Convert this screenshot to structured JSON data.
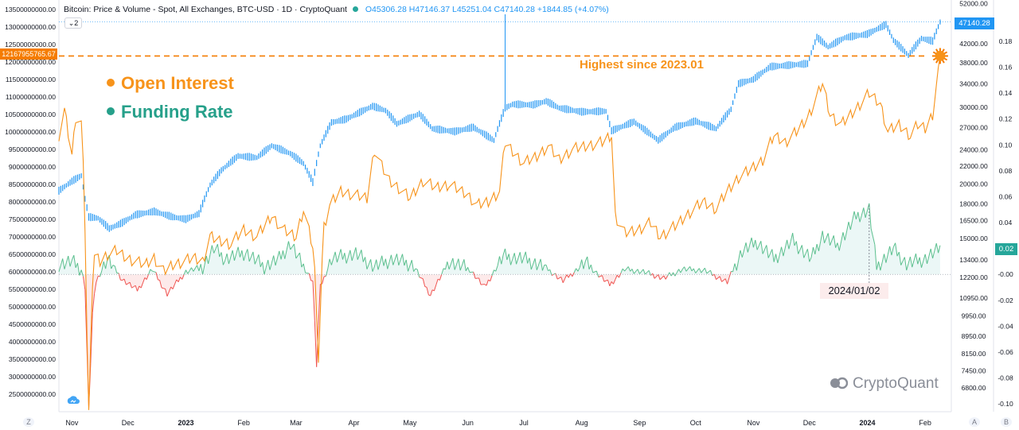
{
  "header": {
    "title": "Bitcoin: Price & Volume - Spot, All Exchanges, BTC-USD · 1D · CryptoQuant",
    "ohlc": "O45306.28 H47146.37 L45251.04 C47140.28 +1844.85 (+4.07%)",
    "collapse_label": "2"
  },
  "legend": {
    "open_interest": "Open Interest",
    "funding_rate": "Funding Rate"
  },
  "annotation": "Highest since 2023.01",
  "date_marker": "2024/01/02",
  "tags": {
    "price": "47140.28",
    "funding_rate": "0.02",
    "open_interest": "12167955765.67"
  },
  "watermark": "CryptoQuant",
  "corners": {
    "left": "Z",
    "right_a": "A",
    "right_b": "B"
  },
  "colors": {
    "price": "#2196f3",
    "open_interest": "#f7931a",
    "funding_positive": "#26a69a",
    "funding_negative": "#ef5350",
    "annotation": "#f7931a"
  },
  "chart_data": {
    "type": "line",
    "x_ticks": [
      "Nov",
      "Dec",
      "2023",
      "Feb",
      "Mar",
      "Apr",
      "May",
      "Jun",
      "Jul",
      "Aug",
      "Sep",
      "Oct",
      "Nov",
      "Dec",
      "2024",
      "Feb"
    ],
    "x_range": [
      "2022-10-25",
      "2024-02-15"
    ],
    "left_axis": {
      "ticks": [
        "13500000000.00",
        "13000000000.00",
        "12500000000.00",
        "12000000000.00",
        "11500000000.00",
        "11000000000.00",
        "10500000000.00",
        "10000000000.00",
        "9500000000.00",
        "9000000000.00",
        "8500000000.00",
        "8000000000.00",
        "7500000000.00",
        "7000000000.00",
        "6500000000.00",
        "6000000000.00",
        "5500000000.00",
        "5000000000.00",
        "4500000000.00",
        "4000000000.00",
        "3500000000.00",
        "3000000000.00",
        "2500000000.00"
      ],
      "range": [
        2000000000,
        13700000000
      ]
    },
    "price_axis": {
      "ticks": [
        "52000.00",
        "47000.00",
        "42000.00",
        "38000.00",
        "34000.00",
        "30000.00",
        "27000.00",
        "24000.00",
        "22000.00",
        "20000.00",
        "18000.00",
        "16500.00",
        "15000.00",
        "13400.00",
        "12200.00",
        "10950.00",
        "9950.00",
        "8950.00",
        "8150.00",
        "7450.00",
        "6800.00"
      ],
      "scale": "log"
    },
    "funding_axis": {
      "ticks": [
        "0.18",
        "0.16",
        "0.14",
        "0.12",
        "0.10",
        "0.08",
        "0.06",
        "0.04",
        "0.02",
        "-0.00",
        "-0.02",
        "-0.04",
        "-0.06",
        "-0.08",
        "-0.10"
      ],
      "range": [
        -0.106,
        0.21
      ]
    },
    "series": [
      {
        "name": "Open Interest",
        "unit": "USD",
        "points": [
          [
            "2022-10-25",
            9900000000
          ],
          [
            "2022-10-28",
            10600000000
          ],
          [
            "2022-11-01",
            9300000000
          ],
          [
            "2022-11-03",
            10400000000
          ],
          [
            "2022-11-06",
            10200000000
          ],
          [
            "2022-11-08",
            8500000000
          ],
          [
            "2022-11-10",
            6700000000
          ],
          [
            "2022-11-13",
            6500000000
          ],
          [
            "2022-11-16",
            6300000000
          ],
          [
            "2022-11-20",
            6500000000
          ],
          [
            "2022-11-25",
            6600000000
          ],
          [
            "2022-11-30",
            6400000000
          ],
          [
            "2022-12-05",
            6300000000
          ],
          [
            "2022-12-10",
            6200000000
          ],
          [
            "2022-12-15",
            6400000000
          ],
          [
            "2022-12-20",
            6000000000
          ],
          [
            "2022-12-25",
            6200000000
          ],
          [
            "2022-12-31",
            6300000000
          ],
          [
            "2023-01-05",
            6400000000
          ],
          [
            "2023-01-10",
            6300000000
          ],
          [
            "2023-01-14",
            7000000000
          ],
          [
            "2023-01-18",
            6900000000
          ],
          [
            "2023-01-25",
            6800000000
          ],
          [
            "2023-02-01",
            7200000000
          ],
          [
            "2023-02-08",
            7000000000
          ],
          [
            "2023-02-16",
            7600000000
          ],
          [
            "2023-02-22",
            7200000000
          ],
          [
            "2023-03-01",
            7000000000
          ],
          [
            "2023-03-05",
            7800000000
          ],
          [
            "2023-03-10",
            6700000000
          ],
          [
            "2023-03-14",
            6900000000
          ],
          [
            "2023-03-19",
            7900000000
          ],
          [
            "2023-03-25",
            8300000000
          ],
          [
            "2023-04-01",
            8200000000
          ],
          [
            "2023-04-08",
            8100000000
          ],
          [
            "2023-04-12",
            9500000000
          ],
          [
            "2023-04-16",
            9000000000
          ],
          [
            "2023-04-20",
            8600000000
          ],
          [
            "2023-04-25",
            8400000000
          ],
          [
            "2023-05-01",
            8100000000
          ],
          [
            "2023-05-08",
            8600000000
          ],
          [
            "2023-05-15",
            8400000000
          ],
          [
            "2023-05-22",
            8500000000
          ],
          [
            "2023-06-01",
            8200000000
          ],
          [
            "2023-06-06",
            7900000000
          ],
          [
            "2023-06-12",
            8000000000
          ],
          [
            "2023-06-18",
            8300000000
          ],
          [
            "2023-06-21",
            9700000000
          ],
          [
            "2023-06-24",
            9500000000
          ],
          [
            "2023-07-01",
            9100000000
          ],
          [
            "2023-07-08",
            9300000000
          ],
          [
            "2023-07-14",
            9600000000
          ],
          [
            "2023-07-20",
            9200000000
          ],
          [
            "2023-07-27",
            9500000000
          ],
          [
            "2023-08-04",
            9600000000
          ],
          [
            "2023-08-12",
            9700000000
          ],
          [
            "2023-08-17",
            9900000000
          ],
          [
            "2023-08-19",
            7600000000
          ],
          [
            "2023-08-24",
            7100000000
          ],
          [
            "2023-08-31",
            7200000000
          ],
          [
            "2023-09-07",
            7400000000
          ],
          [
            "2023-09-12",
            7000000000
          ],
          [
            "2023-09-20",
            7300000000
          ],
          [
            "2023-09-28",
            7700000000
          ],
          [
            "2023-10-05",
            8000000000
          ],
          [
            "2023-10-12",
            7800000000
          ],
          [
            "2023-10-18",
            8300000000
          ],
          [
            "2023-10-24",
            8700000000
          ],
          [
            "2023-10-30",
            8900000000
          ],
          [
            "2023-11-06",
            9200000000
          ],
          [
            "2023-11-12",
            9900000000
          ],
          [
            "2023-11-18",
            9700000000
          ],
          [
            "2023-11-24",
            10000000000
          ],
          [
            "2023-11-30",
            10400000000
          ],
          [
            "2023-12-05",
            11000000000
          ],
          [
            "2023-12-08",
            11400000000
          ],
          [
            "2023-12-12",
            10500000000
          ],
          [
            "2023-12-18",
            10200000000
          ],
          [
            "2023-12-25",
            10600000000
          ],
          [
            "2024-01-02",
            11100000000
          ],
          [
            "2024-01-08",
            10800000000
          ],
          [
            "2024-01-12",
            10000000000
          ],
          [
            "2024-01-18",
            10200000000
          ],
          [
            "2024-01-24",
            9900000000
          ],
          [
            "2024-01-28",
            10200000000
          ],
          [
            "2024-02-01",
            10100000000
          ],
          [
            "2024-02-05",
            10500000000
          ],
          [
            "2024-02-09",
            12167955765.67
          ]
        ]
      },
      {
        "name": "Price",
        "unit": "USD",
        "points": [
          [
            "2022-10-25",
            19300
          ],
          [
            "2022-11-01",
            20300
          ],
          [
            "2022-11-06",
            20900
          ],
          [
            "2022-11-08",
            18500
          ],
          [
            "2022-11-10",
            16800
          ],
          [
            "2022-11-15",
            16700
          ],
          [
            "2022-11-21",
            15800
          ],
          [
            "2022-11-28",
            16300
          ],
          [
            "2022-12-05",
            17000
          ],
          [
            "2022-12-15",
            17300
          ],
          [
            "2022-12-25",
            16800
          ],
          [
            "2023-01-01",
            16600
          ],
          [
            "2023-01-08",
            17100
          ],
          [
            "2023-01-14",
            19900
          ],
          [
            "2023-01-20",
            21500
          ],
          [
            "2023-01-29",
            23200
          ],
          [
            "2023-02-08",
            23000
          ],
          [
            "2023-02-16",
            24500
          ],
          [
            "2023-02-26",
            23500
          ],
          [
            "2023-03-05",
            22300
          ],
          [
            "2023-03-10",
            20200
          ],
          [
            "2023-03-14",
            24500
          ],
          [
            "2023-03-20",
            27700
          ],
          [
            "2023-03-28",
            28200
          ],
          [
            "2023-04-11",
            30200
          ],
          [
            "2023-04-18",
            29500
          ],
          [
            "2023-04-24",
            27500
          ],
          [
            "2023-05-06",
            29000
          ],
          [
            "2023-05-13",
            26800
          ],
          [
            "2023-05-25",
            26400
          ],
          [
            "2023-06-04",
            27000
          ],
          [
            "2023-06-15",
            25200
          ],
          [
            "2023-06-21",
            29900
          ],
          [
            "2023-06-25",
            30500
          ],
          [
            "2023-07-06",
            30400
          ],
          [
            "2023-07-13",
            31000
          ],
          [
            "2023-07-20",
            29900
          ],
          [
            "2023-08-01",
            29300
          ],
          [
            "2023-08-14",
            29400
          ],
          [
            "2023-08-17",
            26500
          ],
          [
            "2023-08-29",
            27800
          ],
          [
            "2023-09-11",
            25200
          ],
          [
            "2023-09-20",
            27000
          ],
          [
            "2023-10-01",
            27900
          ],
          [
            "2023-10-12",
            26800
          ],
          [
            "2023-10-20",
            29700
          ],
          [
            "2023-10-24",
            34000
          ],
          [
            "2023-11-01",
            34800
          ],
          [
            "2023-11-10",
            37200
          ],
          [
            "2023-11-20",
            37500
          ],
          [
            "2023-11-30",
            37800
          ],
          [
            "2023-12-05",
            43500
          ],
          [
            "2023-12-11",
            41300
          ],
          [
            "2023-12-20",
            43400
          ],
          [
            "2024-01-01",
            44200
          ],
          [
            "2024-01-11",
            46500
          ],
          [
            "2024-01-15",
            42800
          ],
          [
            "2024-01-23",
            39500
          ],
          [
            "2024-01-30",
            43200
          ],
          [
            "2024-02-05",
            42600
          ],
          [
            "2024-02-09",
            47140.28
          ]
        ]
      },
      {
        "name": "Funding Rate",
        "unit": "%",
        "points": [
          [
            "2022-10-25",
            0.008
          ],
          [
            "2022-11-01",
            0.01
          ],
          [
            "2022-11-06",
            0.004
          ],
          [
            "2022-11-08",
            -0.01
          ],
          [
            "2022-11-10",
            -0.105
          ],
          [
            "2022-11-12",
            -0.03
          ],
          [
            "2022-11-14",
            -0.005
          ],
          [
            "2022-11-20",
            0.012
          ],
          [
            "2022-11-28",
            -0.004
          ],
          [
            "2022-12-06",
            -0.012
          ],
          [
            "2022-12-14",
            0.004
          ],
          [
            "2022-12-22",
            -0.015
          ],
          [
            "2023-01-01",
            0.002
          ],
          [
            "2023-01-10",
            0.006
          ],
          [
            "2023-01-16",
            0.02
          ],
          [
            "2023-01-22",
            0.012
          ],
          [
            "2023-02-02",
            0.017
          ],
          [
            "2023-02-12",
            0.006
          ],
          [
            "2023-02-20",
            0.012
          ],
          [
            "2023-02-26",
            0.024
          ],
          [
            "2023-03-04",
            0.008
          ],
          [
            "2023-03-10",
            -0.005
          ],
          [
            "2023-03-12",
            -0.07
          ],
          [
            "2023-03-14",
            -0.01
          ],
          [
            "2023-03-20",
            0.012
          ],
          [
            "2023-04-02",
            0.016
          ],
          [
            "2023-04-12",
            0.006
          ],
          [
            "2023-04-22",
            0.012
          ],
          [
            "2023-05-03",
            0.007
          ],
          [
            "2023-05-12",
            -0.016
          ],
          [
            "2023-05-22",
            0.01
          ],
          [
            "2023-06-02",
            0.004
          ],
          [
            "2023-06-10",
            -0.01
          ],
          [
            "2023-06-20",
            0.014
          ],
          [
            "2023-07-01",
            0.012
          ],
          [
            "2023-07-12",
            0.006
          ],
          [
            "2023-07-22",
            -0.005
          ],
          [
            "2023-08-03",
            0.009
          ],
          [
            "2023-08-16",
            -0.008
          ],
          [
            "2023-08-24",
            0.004
          ],
          [
            "2023-09-03",
            0.002
          ],
          [
            "2023-09-14",
            -0.003
          ],
          [
            "2023-09-24",
            0.004
          ],
          [
            "2023-10-06",
            0.003
          ],
          [
            "2023-10-18",
            -0.006
          ],
          [
            "2023-10-26",
            0.018
          ],
          [
            "2023-11-03",
            0.025
          ],
          [
            "2023-11-12",
            0.012
          ],
          [
            "2023-11-22",
            0.026
          ],
          [
            "2023-12-02",
            0.012
          ],
          [
            "2023-12-08",
            0.03
          ],
          [
            "2023-12-16",
            0.022
          ],
          [
            "2023-12-26",
            0.045
          ],
          [
            "2024-01-02",
            0.05
          ],
          [
            "2024-01-06",
            0.006
          ],
          [
            "2024-01-15",
            0.02
          ],
          [
            "2024-01-22",
            0.008
          ],
          [
            "2024-02-01",
            0.012
          ],
          [
            "2024-02-09",
            0.02
          ]
        ]
      }
    ],
    "grid": false
  }
}
